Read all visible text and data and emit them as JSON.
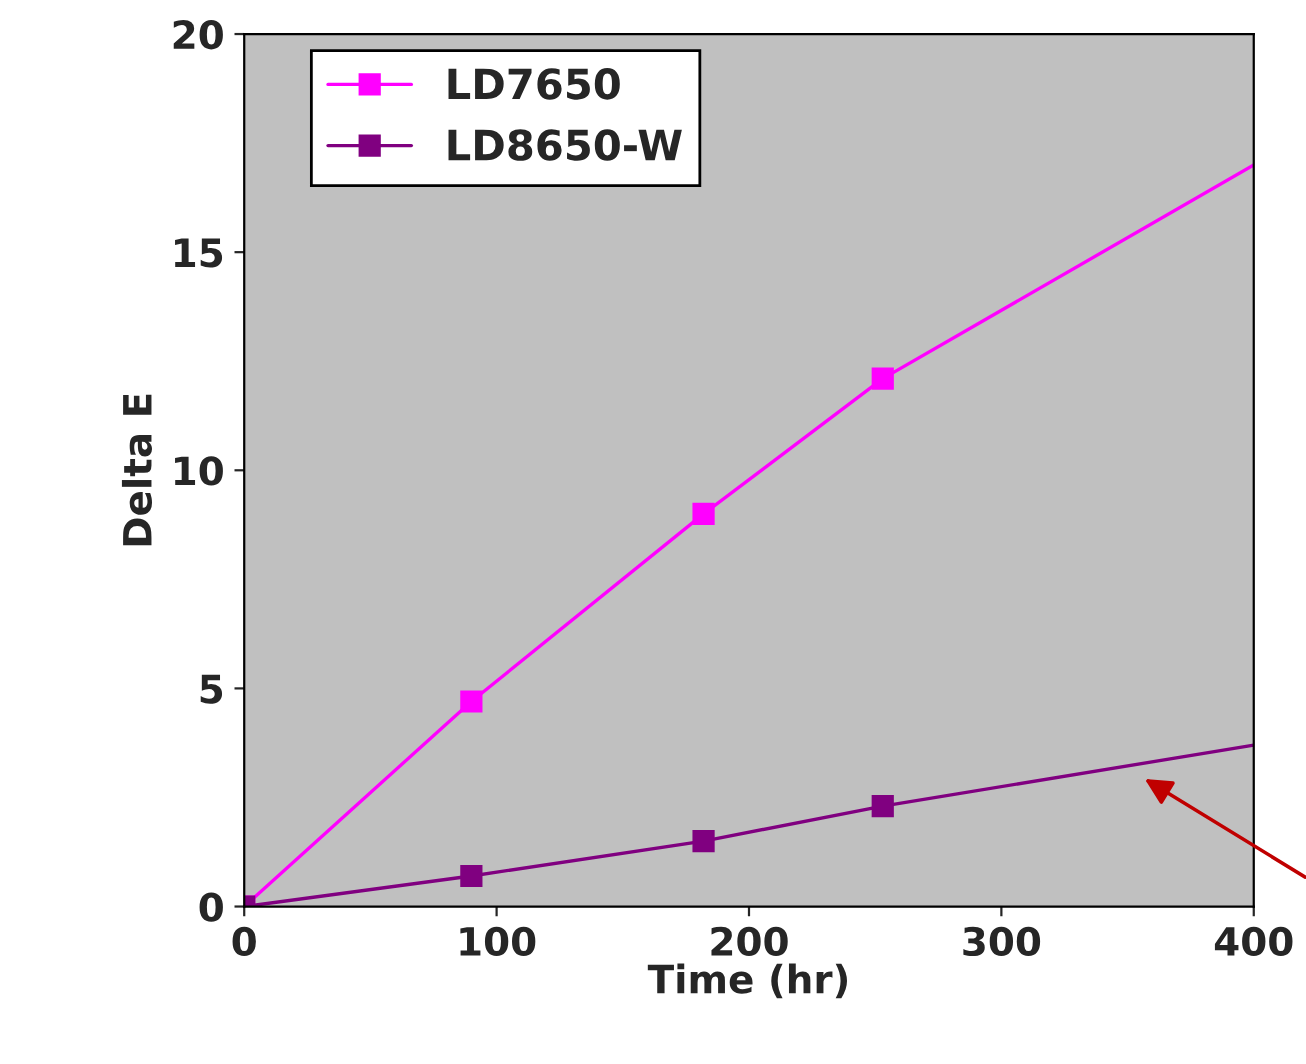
{
  "chart_data": {
    "type": "line",
    "xlabel": "Time (hr)",
    "ylabel": "Delta E",
    "xlim": [
      0,
      400
    ],
    "ylim": [
      0,
      20
    ],
    "xticks": [
      0,
      100,
      200,
      300,
      400
    ],
    "yticks": [
      0,
      5,
      10,
      15,
      20
    ],
    "grid": false,
    "legend": "top left",
    "marker": "square",
    "line_style": "solid",
    "series": [
      {
        "name": "LD7650",
        "color": "#ff00ff",
        "x": [
          0,
          90,
          182,
          253
        ],
        "values": [
          0,
          4.7,
          9.0,
          12.1
        ]
      },
      {
        "name": "LD8650-W",
        "color": "#800080",
        "x": [
          0,
          90,
          182,
          253
        ],
        "values": [
          0,
          0.7,
          1.5,
          2.3
        ]
      },
      {
        "type": "line",
        "marker": "none",
        "color": "#ff00ff",
        "x": [
          253,
          400
        ],
        "values": [
          12.1,
          17.0
        ]
      },
      {
        "type": "line",
        "marker": "none",
        "color": "#800080",
        "x": [
          253,
          400
        ],
        "values": [
          2.3,
          3.7
        ]
      }
    ]
  }
}
